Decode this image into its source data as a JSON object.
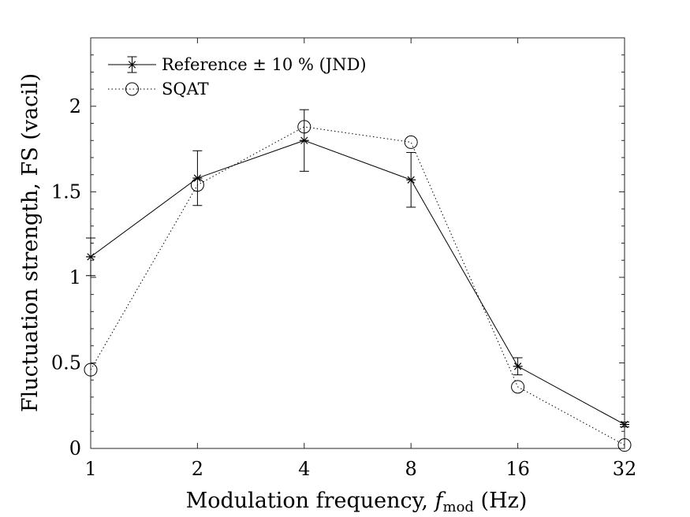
{
  "chart_data": {
    "type": "line",
    "xscale": "log2",
    "x": [
      1,
      2,
      4,
      8,
      16,
      32
    ],
    "x_tick_labels": [
      "1",
      "2",
      "4",
      "8",
      "16",
      "32"
    ],
    "y_ticks": [
      0,
      0.5,
      1,
      1.5,
      2
    ],
    "y_tick_labels": [
      "0",
      "0.5",
      "1",
      "1.5",
      "2"
    ],
    "xlim": [
      1,
      32
    ],
    "ylim": [
      0,
      2.4
    ],
    "xlabel": "Modulation frequency, f_mod (Hz)",
    "xlabel_parts": {
      "pre": "Modulation frequency, ",
      "var": "f",
      "sub": "mod",
      "post": " (Hz)"
    },
    "ylabel": "Fluctuation strength, FS (vacil)",
    "grid": false,
    "legend_position": "top-left",
    "series": [
      {
        "name": "Reference ± 10 % (JND)",
        "values": [
          1.12,
          1.58,
          1.8,
          1.57,
          0.48,
          0.14
        ],
        "error": [
          0.11,
          0.16,
          0.18,
          0.16,
          0.05,
          0.014
        ],
        "line_style": "solid",
        "marker": "asterisk",
        "color": "#000000"
      },
      {
        "name": "SQAT",
        "values": [
          0.46,
          1.54,
          1.88,
          1.79,
          0.36,
          0.02
        ],
        "line_style": "dotted",
        "marker": "circle",
        "color": "#000000"
      }
    ]
  }
}
